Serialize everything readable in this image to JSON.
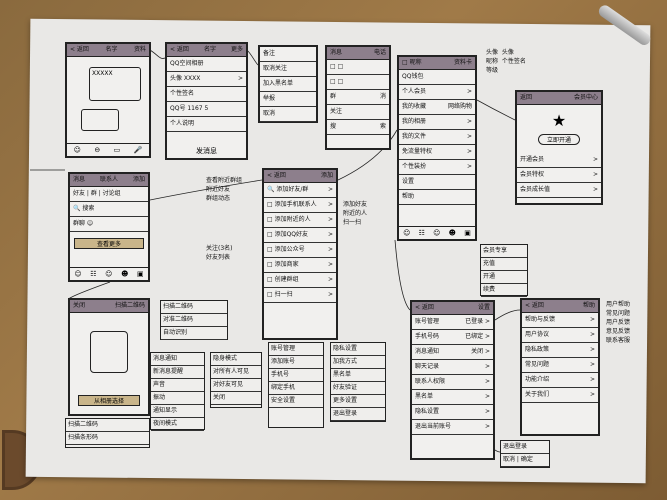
{
  "phones": [
    {
      "id": "p1",
      "name": "chat-screen",
      "header": [
        "< 返回",
        "名字",
        "资料"
      ],
      "rows": [],
      "bubble": "XXXXX",
      "tabbar": [
        "☺",
        "⊖",
        "▭",
        "🎤"
      ]
    },
    {
      "id": "p2",
      "name": "profile-screen",
      "header": [
        "< 返回",
        "名字",
        "更多"
      ],
      "rows": [
        [
          "QQ空间相册",
          ""
        ],
        [
          "头像  XXXX",
          ">"
        ],
        [
          "个性签名",
          ""
        ],
        [
          "QQ号 1167 5",
          ""
        ],
        [
          "个人说明",
          ""
        ]
      ],
      "footer": "发消息"
    },
    {
      "id": "p3",
      "name": "more-action-sheet",
      "header": [],
      "rows": [
        [
          "备注",
          ""
        ],
        [
          "取消关注",
          ""
        ],
        [
          "加入黑名单",
          ""
        ],
        [
          "举报",
          ""
        ],
        [
          "取消",
          ""
        ]
      ]
    },
    {
      "id": "p4",
      "name": "list-screen",
      "header": [
        "消息",
        "电话"
      ],
      "rows": [
        [
          "□ □",
          ""
        ],
        [
          "□ □",
          ""
        ],
        [
          "群",
          "消"
        ],
        [
          "关注",
          ""
        ],
        [
          "搜",
          "索"
        ]
      ]
    },
    {
      "id": "p5",
      "name": "me-panel",
      "header": [
        "□ 昵称",
        "资料卡"
      ],
      "rows": [
        [
          "QQ钱包",
          ""
        ],
        [
          "个人会员",
          ">"
        ],
        [
          "我的收藏",
          "网络购物"
        ],
        [
          "我的相册",
          ">"
        ],
        [
          "我的文件",
          ">"
        ],
        [
          "免流量特权",
          ">"
        ],
        [
          "个性装扮",
          ">"
        ],
        [
          "设置",
          ""
        ],
        [
          "帮助",
          ""
        ]
      ],
      "tabbar": [
        "☺",
        "☷",
        "☺",
        "☻",
        "▣"
      ]
    },
    {
      "id": "p6",
      "name": "vip-screen",
      "header": [
        "返回",
        "会员中心"
      ],
      "rows": [
        [
          "开通会员",
          ">"
        ],
        [
          "会员特权",
          ">"
        ],
        [
          "会员成长值",
          ">"
        ]
      ],
      "star": "★",
      "badge": "立即开通"
    },
    {
      "id": "p7",
      "name": "contacts-screen",
      "header": [
        "消息",
        "联系人",
        "添加"
      ],
      "rows": [
        [
          "好友 | 群 | 讨论组",
          ""
        ],
        [
          "🔍 搜索",
          ""
        ],
        [
          "群聊  ☺",
          ""
        ]
      ],
      "highlight": "查看更多",
      "tabbar": [
        "☺",
        "☷",
        "☺",
        "☻",
        "▣"
      ]
    },
    {
      "id": "p8",
      "name": "add-screen",
      "header": [
        "< 返回",
        "添加"
      ],
      "rows": [
        [
          "🔍 添加好友/群",
          ">"
        ],
        [
          "□ 添加手机联系人",
          ">"
        ],
        [
          "□ 添加附近的人",
          ">"
        ],
        [
          "□ 添加QQ好友",
          ">"
        ],
        [
          "□ 添加公众号",
          ">"
        ],
        [
          "□ 添加商家",
          ">"
        ],
        [
          "□ 创建群组",
          ">"
        ],
        [
          "□ 扫一扫",
          ">"
        ]
      ]
    },
    {
      "id": "p9",
      "name": "scan-screen",
      "header": [
        "关闭",
        "扫描二维码"
      ],
      "rows": [],
      "btn": "从相册选择"
    },
    {
      "id": "p10",
      "name": "settings-screen",
      "header": [
        "< 返回",
        "设置"
      ],
      "rows": [
        [
          "账号管理",
          "已登录 >"
        ],
        [
          "手机号码",
          "已绑定 >"
        ],
        [
          "消息通知",
          "关闭 >"
        ],
        [
          "聊天记录",
          ">"
        ],
        [
          "联系人权限",
          ">"
        ],
        [
          "黑名单",
          ">"
        ],
        [
          "隐私设置",
          ">"
        ],
        [
          "退出当前账号",
          ">"
        ]
      ]
    },
    {
      "id": "p11",
      "name": "help-screen",
      "header": [
        "< 返回",
        "帮助"
      ],
      "rows": [
        [
          "帮助与反馈",
          ">"
        ],
        [
          "用户协议",
          ">"
        ],
        [
          "隐私政策",
          ">"
        ],
        [
          "常见问题",
          ">"
        ],
        [
          "功能介绍",
          ">"
        ],
        [
          "关于我们",
          ">"
        ]
      ]
    }
  ],
  "boxes": [
    {
      "id": "b1",
      "name": "message-settings-box",
      "rows": [
        "消息通知",
        "新消息提醒",
        "声音",
        "振动",
        "通知显示",
        "夜间模式"
      ]
    },
    {
      "id": "b2",
      "name": "mode-box",
      "rows": [
        "隐身模式",
        "对所有人可见",
        "对好友可见",
        "关闭"
      ]
    },
    {
      "id": "b3",
      "name": "account-box",
      "rows": [
        "账号管理",
        "添加账号",
        "手机号",
        "绑定手机",
        "安全设置"
      ]
    },
    {
      "id": "b4",
      "name": "privacy-box",
      "rows": [
        "隐私设置",
        "加我方式",
        "黑名单",
        "好友验证",
        "更多设置",
        "退出登录"
      ]
    },
    {
      "id": "b5",
      "name": "scan-options-box",
      "rows": [
        "扫描二维码",
        "扫描条形码"
      ]
    },
    {
      "id": "b6",
      "name": "logout-confirm-box",
      "rows": [
        "退出登录",
        "取消 | 确定"
      ]
    },
    {
      "id": "b7",
      "name": "vip-options-box",
      "rows": [
        "会员专享",
        "充值",
        "开通",
        "续费"
      ]
    },
    {
      "id": "b8",
      "name": "scan-note-box",
      "rows": [
        "扫描二维码",
        "对准二维码",
        "自动识别"
      ]
    }
  ],
  "notes": [
    {
      "name": "note-group",
      "text": "查看附近群组\n附近好友\n群组动态"
    },
    {
      "name": "note-follow",
      "text": "关注(3名)\n好友列表"
    },
    {
      "name": "note-add",
      "text": "添加好友\n附近的人\n扫一扫"
    },
    {
      "name": "note-me",
      "text": "头像  头像\n昵称  个性签名\n等级"
    },
    {
      "name": "note-help",
      "text": "用户帮助\n常见问题\n用户反馈\n意见反馈\n联系客服"
    }
  ]
}
